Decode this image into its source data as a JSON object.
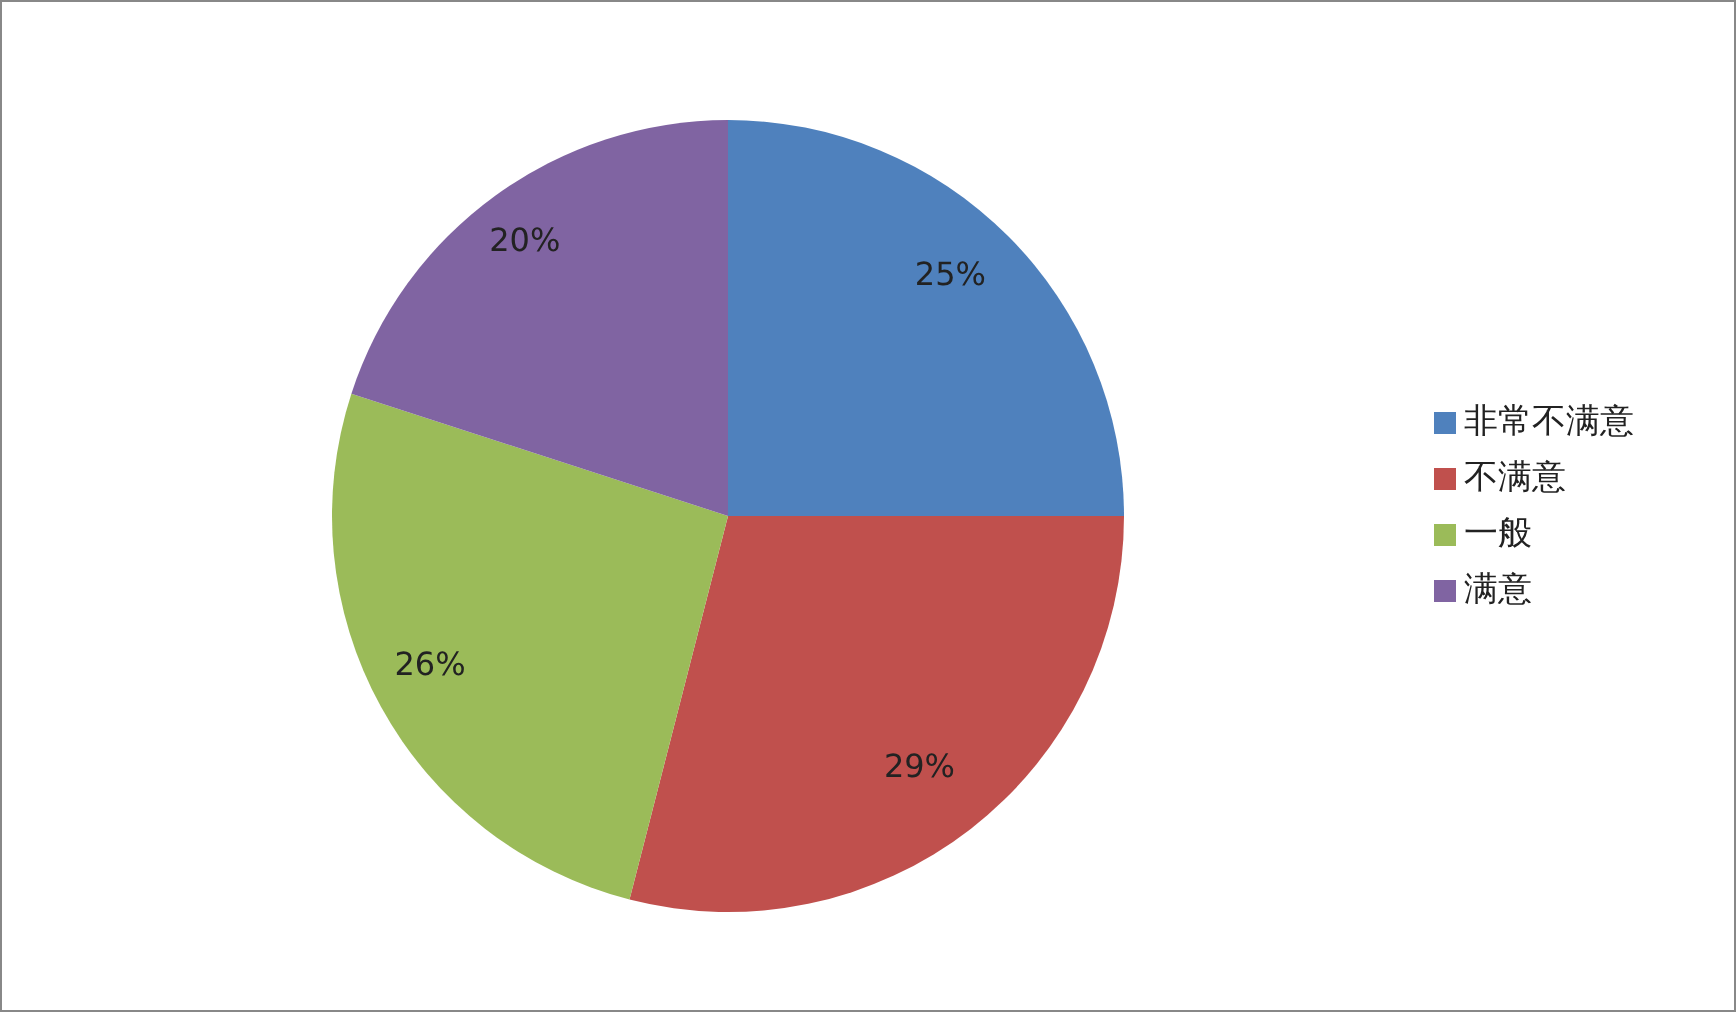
{
  "chart_data": {
    "type": "pie",
    "categories": [
      "非常不满意",
      "不满意",
      "一般",
      "满意"
    ],
    "values": [
      25,
      29,
      26,
      20
    ],
    "colors": [
      "#4f81bd",
      "#c0504d",
      "#9bbb59",
      "#8064a2"
    ],
    "value_labels": [
      "25%",
      "29%",
      "26%",
      "20%"
    ],
    "legend": "right"
  }
}
